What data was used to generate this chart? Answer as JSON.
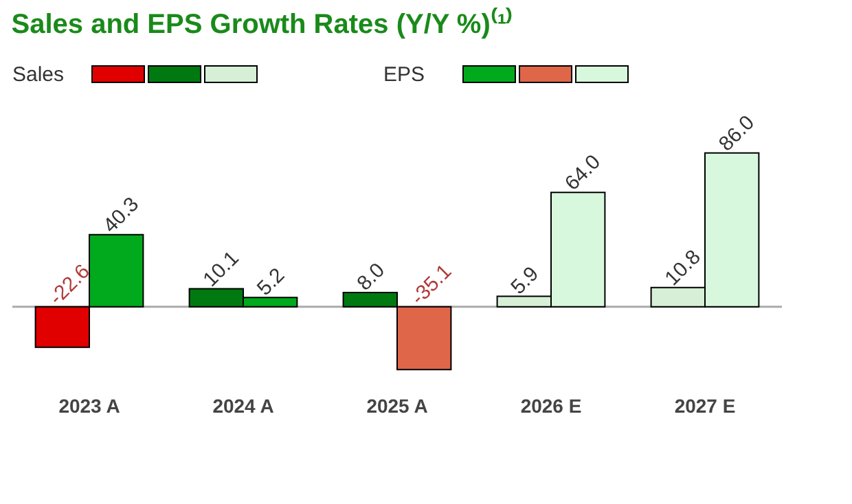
{
  "chart_data": {
    "type": "bar",
    "title": "Sales and EPS Growth Rates (Y/Y %)⁽¹⁾",
    "categories": [
      "2023 A",
      "2024 A",
      "2025 A",
      "2026 E",
      "2027 E"
    ],
    "legend": "top left",
    "series": [
      {
        "name": "Sales",
        "values": [
          -22.6,
          10.1,
          8.0,
          5.9,
          10.8
        ],
        "value_labels": [
          "-22.6",
          "10.1",
          "8.0",
          "5.9",
          "10.8"
        ],
        "colors": [
          "#e00000",
          "#007a10",
          "#007a10",
          "#d6efd6",
          "#d6efd6"
        ]
      },
      {
        "name": "EPS",
        "values": [
          40.3,
          5.2,
          -35.1,
          64.0,
          86.0
        ],
        "value_labels": [
          "40.3",
          "5.2",
          "-35.1",
          "64.0",
          "86.0"
        ],
        "colors": [
          "#00aa1c",
          "#00aa1c",
          "#e0664a",
          "#d8f8de",
          "#d8f8de"
        ]
      }
    ]
  }
}
